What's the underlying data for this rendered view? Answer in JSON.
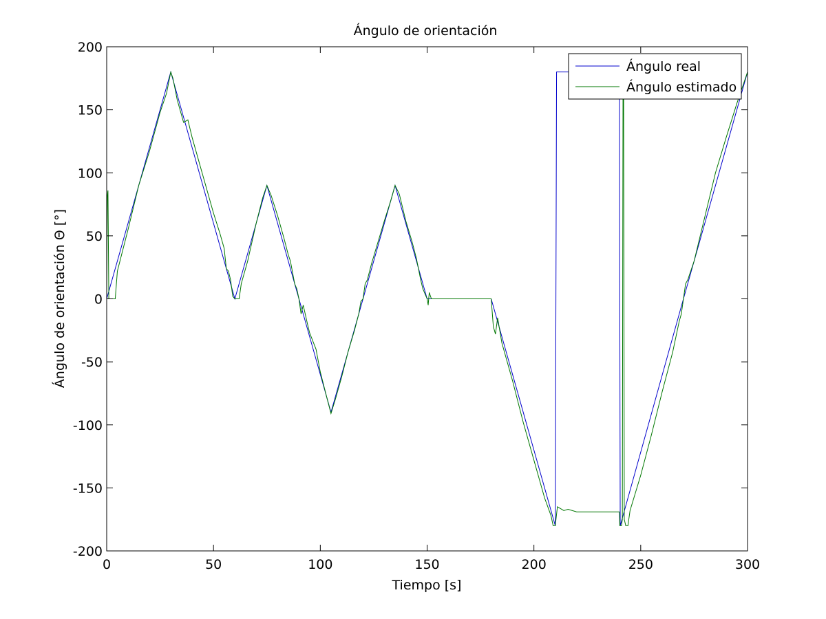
{
  "chart_data": {
    "type": "line",
    "title": "Ángulo de orientación",
    "xlabel": "Tiempo [s]",
    "ylabel": "Ángulo de orientación Θ [°]",
    "xlim": [
      0,
      300
    ],
    "ylim": [
      -200,
      200
    ],
    "xticks": [
      0,
      50,
      100,
      150,
      200,
      250,
      300
    ],
    "yticks": [
      -200,
      -150,
      -100,
      -50,
      0,
      50,
      100,
      150,
      200
    ],
    "grid": false,
    "legend_position": "top-right",
    "series": [
      {
        "name": "Ángulo real",
        "color": "#0000cc",
        "points": [
          [
            0,
            0
          ],
          [
            30,
            180
          ],
          [
            60,
            0
          ],
          [
            75,
            90
          ],
          [
            105,
            -90
          ],
          [
            135,
            90
          ],
          [
            150,
            0
          ],
          [
            180,
            0
          ],
          [
            210,
            -180
          ],
          [
            210.3,
            0
          ],
          [
            210.6,
            180
          ],
          [
            240,
            180
          ],
          [
            240.2,
            0
          ],
          [
            240.4,
            -180
          ],
          [
            270,
            0
          ],
          [
            300,
            180
          ]
        ]
      },
      {
        "name": "Ángulo estimado",
        "color": "#007700",
        "points": [
          [
            0,
            0
          ],
          [
            0.3,
            82
          ],
          [
            0.6,
            86
          ],
          [
            1,
            0
          ],
          [
            4,
            0
          ],
          [
            5,
            22
          ],
          [
            10,
            55
          ],
          [
            15,
            90
          ],
          [
            20,
            117
          ],
          [
            25,
            148
          ],
          [
            28,
            163
          ],
          [
            30,
            180
          ],
          [
            31,
            175
          ],
          [
            33,
            158
          ],
          [
            36,
            140
          ],
          [
            38,
            142
          ],
          [
            40,
            128
          ],
          [
            45,
            98
          ],
          [
            50,
            68
          ],
          [
            53,
            52
          ],
          [
            55,
            40
          ],
          [
            56,
            24
          ],
          [
            57,
            22
          ],
          [
            58,
            15
          ],
          [
            59,
            2
          ],
          [
            60,
            0
          ],
          [
            62,
            0
          ],
          [
            63,
            12
          ],
          [
            66,
            30
          ],
          [
            70,
            60
          ],
          [
            73,
            80
          ],
          [
            75,
            90
          ],
          [
            77,
            82
          ],
          [
            80,
            66
          ],
          [
            83,
            48
          ],
          [
            85,
            35
          ],
          [
            86,
            30
          ],
          [
            88,
            12
          ],
          [
            89,
            8
          ],
          [
            90,
            0
          ],
          [
            91,
            -12
          ],
          [
            92,
            -5
          ],
          [
            94,
            -20
          ],
          [
            95,
            -27
          ],
          [
            98,
            -40
          ],
          [
            100,
            -58
          ],
          [
            103,
            -78
          ],
          [
            105,
            -91
          ],
          [
            107,
            -80
          ],
          [
            110,
            -62
          ],
          [
            113,
            -42
          ],
          [
            116,
            -25
          ],
          [
            118,
            -12
          ],
          [
            119,
            -2
          ],
          [
            120,
            0
          ],
          [
            121,
            12
          ],
          [
            122,
            15
          ],
          [
            124,
            28
          ],
          [
            127,
            45
          ],
          [
            130,
            62
          ],
          [
            133,
            78
          ],
          [
            135,
            90
          ],
          [
            137,
            83
          ],
          [
            140,
            62
          ],
          [
            143,
            45
          ],
          [
            145,
            32
          ],
          [
            147,
            15
          ],
          [
            148,
            8
          ],
          [
            150,
            0
          ],
          [
            150.5,
            -5
          ],
          [
            151,
            5
          ],
          [
            152,
            0
          ],
          [
            180,
            0
          ],
          [
            181,
            -22
          ],
          [
            182,
            -28
          ],
          [
            183,
            -15
          ],
          [
            185,
            -35
          ],
          [
            190,
            -65
          ],
          [
            195,
            -98
          ],
          [
            200,
            -128
          ],
          [
            205,
            -158
          ],
          [
            208,
            -172
          ],
          [
            209,
            -180
          ],
          [
            210,
            -180
          ],
          [
            211,
            -165
          ],
          [
            214,
            -168
          ],
          [
            216,
            -167
          ],
          [
            220,
            -169
          ],
          [
            230,
            -169
          ],
          [
            240,
            -169
          ],
          [
            240.2,
            -180
          ],
          [
            241,
            -180
          ],
          [
            241.4,
            -175
          ],
          [
            241.7,
            160
          ],
          [
            242,
            160
          ],
          [
            242.3,
            -175
          ],
          [
            243,
            -180
          ],
          [
            244,
            -180
          ],
          [
            245,
            -168
          ],
          [
            250,
            -140
          ],
          [
            255,
            -108
          ],
          [
            260,
            -74
          ],
          [
            265,
            -42
          ],
          [
            268,
            -18
          ],
          [
            269,
            -12
          ],
          [
            270,
            0
          ],
          [
            271,
            12
          ],
          [
            272,
            15
          ],
          [
            275,
            30
          ],
          [
            280,
            65
          ],
          [
            285,
            100
          ],
          [
            290,
            128
          ],
          [
            295,
            155
          ],
          [
            298,
            170
          ],
          [
            300,
            180
          ],
          [
            300.4,
            163
          ],
          [
            300.6,
            163
          ],
          [
            300.8,
            -165
          ]
        ]
      }
    ]
  }
}
